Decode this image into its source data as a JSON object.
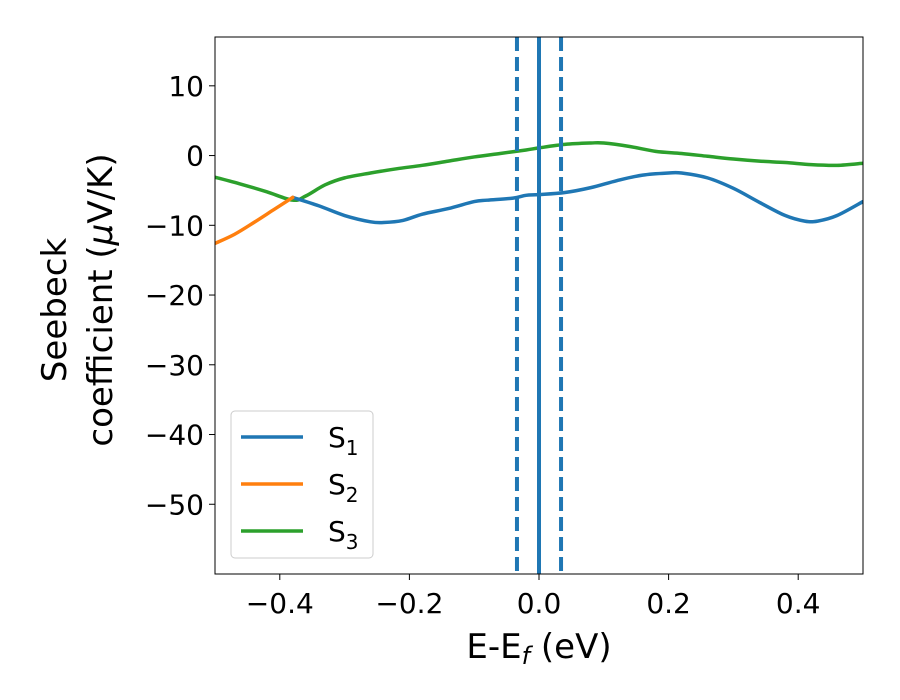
{
  "chart_data": {
    "type": "line",
    "xlabel": {
      "base": "E-E",
      "sub": "f",
      "suffix": " (eV)"
    },
    "ylabel": {
      "line1": "Seebeck",
      "line2_prefix": "coefficient  (",
      "mu": "μ",
      "line2_suffix": "V/K)"
    },
    "xlim": [
      -0.5,
      0.5
    ],
    "ylim": [
      -60,
      17
    ],
    "xticks": [
      -0.4,
      -0.2,
      0.0,
      0.2,
      0.4
    ],
    "xtick_labels": [
      "−0.4",
      "−0.2",
      "0.0",
      "0.2",
      "0.4"
    ],
    "yticks": [
      10,
      0,
      -10,
      -20,
      -30,
      -40,
      -50
    ],
    "ytick_labels": [
      "10",
      "0",
      "−10",
      "−20",
      "−30",
      "−40",
      "−50"
    ],
    "grid": false,
    "legend_position": "lower-left",
    "vlines": [
      {
        "x": 0.0,
        "color": "#000000",
        "style": "dashed"
      },
      {
        "x": 0.0,
        "color": "#1f77b4",
        "style": "solid"
      },
      {
        "x": -0.034,
        "color": "#1f77b4",
        "style": "dashed"
      },
      {
        "x": 0.034,
        "color": "#1f77b4",
        "style": "dashed"
      }
    ],
    "series": [
      {
        "name": "S",
        "sub": "1",
        "color": "#1f77b4",
        "x": [
          -0.38,
          -0.34,
          -0.3,
          -0.26,
          -0.24,
          -0.21,
          -0.18,
          -0.14,
          -0.1,
          -0.08,
          -0.04,
          -0.02,
          0.0,
          0.04,
          0.08,
          0.12,
          0.16,
          0.2,
          0.22,
          0.26,
          0.3,
          0.34,
          0.38,
          0.41,
          0.43,
          0.46,
          0.5
        ],
        "y": [
          -6.0,
          -7.2,
          -8.6,
          -9.5,
          -9.6,
          -9.3,
          -8.4,
          -7.6,
          -6.6,
          -6.4,
          -6.1,
          -5.7,
          -5.6,
          -5.3,
          -4.6,
          -3.6,
          -2.8,
          -2.5,
          -2.5,
          -3.2,
          -4.7,
          -6.7,
          -8.6,
          -9.4,
          -9.4,
          -8.6,
          -6.6
        ]
      },
      {
        "name": "S",
        "sub": "2",
        "color": "#ff7f0e",
        "x": [
          -0.5,
          -0.47,
          -0.44,
          -0.41,
          -0.38
        ],
        "y": [
          -12.6,
          -11.3,
          -9.6,
          -7.8,
          -6.0
        ]
      },
      {
        "name": "S",
        "sub": "3",
        "color": "#2ca02c",
        "x": [
          -0.5,
          -0.46,
          -0.42,
          -0.38,
          -0.36,
          -0.33,
          -0.3,
          -0.26,
          -0.22,
          -0.18,
          -0.14,
          -0.1,
          -0.06,
          -0.02,
          0.0,
          0.04,
          0.08,
          0.1,
          0.14,
          0.18,
          0.22,
          0.26,
          0.3,
          0.34,
          0.38,
          0.42,
          0.46,
          0.5
        ],
        "y": [
          -3.1,
          -4.1,
          -5.2,
          -6.4,
          -5.8,
          -4.2,
          -3.2,
          -2.5,
          -1.9,
          -1.4,
          -0.8,
          -0.2,
          0.3,
          0.8,
          1.1,
          1.6,
          1.8,
          1.8,
          1.3,
          0.6,
          0.3,
          -0.1,
          -0.5,
          -0.8,
          -1.0,
          -1.3,
          -1.4,
          -1.1
        ]
      }
    ]
  }
}
